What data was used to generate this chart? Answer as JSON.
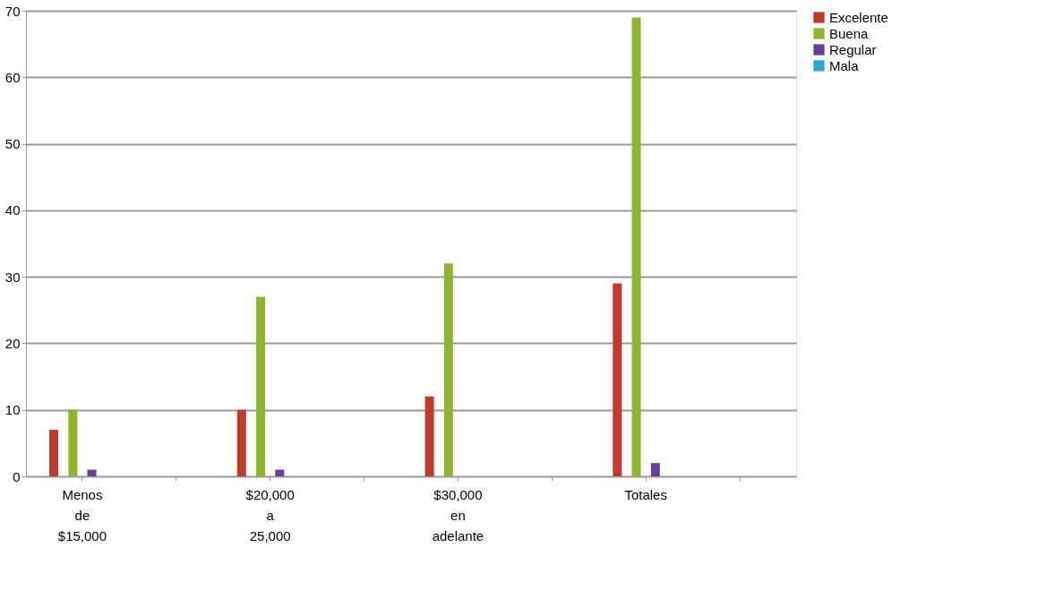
{
  "chart_data": {
    "type": "bar",
    "categories": [
      "Menos de $15,000",
      null,
      "$20,000 a 25,000",
      null,
      "$30,000 en adelante",
      null,
      "Totales",
      null
    ],
    "series": [
      {
        "name": "Excelente",
        "color": "#c0392b",
        "values": [
          7,
          0,
          10,
          0,
          12,
          0,
          29,
          0
        ]
      },
      {
        "name": "Buena",
        "color": "#8db52e",
        "values": [
          10,
          0,
          27,
          0,
          32,
          0,
          69,
          0
        ]
      },
      {
        "name": "Regular",
        "color": "#6a3d9a",
        "values": [
          1,
          0,
          1,
          0,
          0,
          0,
          2,
          0
        ]
      },
      {
        "name": "Mala",
        "color": "#2aa7c9",
        "values": [
          0,
          0,
          0,
          0,
          0,
          0,
          0,
          0
        ]
      }
    ],
    "ylim": [
      0,
      70
    ],
    "yticks": [
      0,
      10,
      20,
      30,
      40,
      50,
      60,
      70
    ],
    "grid": "y",
    "legend": "right"
  }
}
